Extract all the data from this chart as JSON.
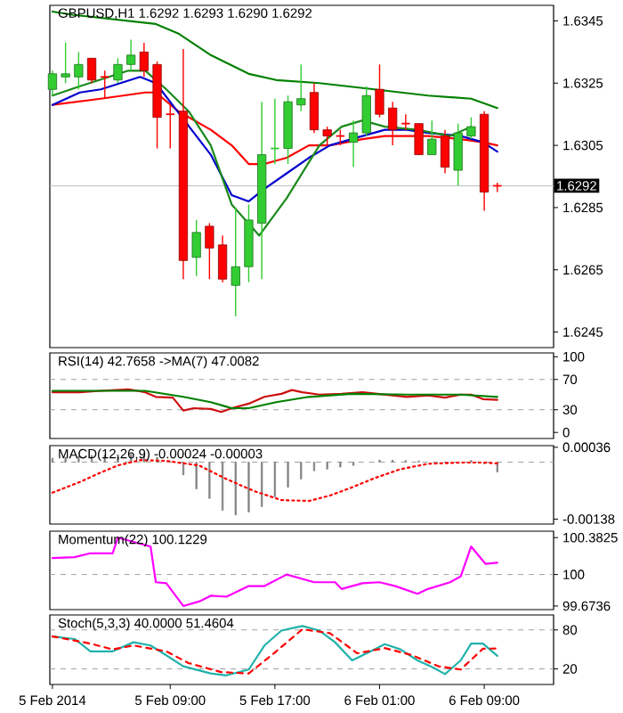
{
  "chart_data": [
    {
      "type": "candlestick",
      "title": "GBPUSD,H1 1.6292 1.6293 1.6290 1.6292",
      "x": [
        "2014-02-05T00:00",
        "2014-02-05T01:00",
        "2014-02-05T02:00",
        "2014-02-05T03:00",
        "2014-02-05T04:00",
        "2014-02-05T05:00",
        "2014-02-05T06:00",
        "2014-02-05T07:00",
        "2014-02-05T08:00",
        "2014-02-05T09:00",
        "2014-02-05T10:00",
        "2014-02-05T11:00",
        "2014-02-05T12:00",
        "2014-02-05T13:00",
        "2014-02-05T14:00",
        "2014-02-05T15:00",
        "2014-02-05T16:00",
        "2014-02-05T17:00",
        "2014-02-05T18:00",
        "2014-02-05T19:00",
        "2014-02-05T20:00",
        "2014-02-05T21:00",
        "2014-02-05T22:00",
        "2014-02-05T23:00",
        "2014-02-06T00:00",
        "2014-02-06T01:00",
        "2014-02-06T02:00",
        "2014-02-06T03:00",
        "2014-02-06T04:00",
        "2014-02-06T05:00",
        "2014-02-06T06:00",
        "2014-02-06T07:00",
        "2014-02-06T08:00",
        "2014-02-06T09:00",
        "2014-02-06T10:00"
      ],
      "ohlc": [
        [
          1.6323,
          1.6329,
          1.6321,
          1.6328
        ],
        [
          1.6327,
          1.6338,
          1.6325,
          1.6328
        ],
        [
          1.6327,
          1.6335,
          1.6323,
          1.6331
        ],
        [
          1.6333,
          1.6333,
          1.6325,
          1.6326
        ],
        [
          1.6327,
          1.6329,
          1.632,
          1.6327
        ],
        [
          1.6326,
          1.6333,
          1.6325,
          1.6331
        ],
        [
          1.6331,
          1.6339,
          1.6329,
          1.6334
        ],
        [
          1.6335,
          1.6338,
          1.6327,
          1.6329
        ],
        [
          1.6331,
          1.6332,
          1.6304,
          1.6314
        ],
        [
          1.6315,
          1.6318,
          1.6304,
          1.6315
        ],
        [
          1.6316,
          1.6336,
          1.6262,
          1.6268
        ],
        [
          1.6269,
          1.6281,
          1.6263,
          1.6277
        ],
        [
          1.6279,
          1.628,
          1.6262,
          1.6272
        ],
        [
          1.6273,
          1.6276,
          1.6261,
          1.6262
        ],
        [
          1.626,
          1.6285,
          1.625,
          1.6266
        ],
        [
          1.6266,
          1.6286,
          1.6261,
          1.6281
        ],
        [
          1.628,
          1.6319,
          1.6262,
          1.6302
        ],
        [
          1.6304,
          1.632,
          1.6299,
          1.6304
        ],
        [
          1.6304,
          1.6321,
          1.6299,
          1.6319
        ],
        [
          1.6318,
          1.6331,
          1.6316,
          1.632
        ],
        [
          1.6322,
          1.6325,
          1.6309,
          1.631
        ],
        [
          1.631,
          1.6311,
          1.6305,
          1.6308
        ],
        [
          1.6308,
          1.631,
          1.6305,
          1.6308
        ],
        [
          1.6306,
          1.6313,
          1.6298,
          1.6309
        ],
        [
          1.6309,
          1.6324,
          1.6308,
          1.6321
        ],
        [
          1.6323,
          1.6331,
          1.6314,
          1.6315
        ],
        [
          1.6317,
          1.6319,
          1.6305,
          1.631
        ],
        [
          1.6312,
          1.6315,
          1.631,
          1.6312
        ],
        [
          1.6312,
          1.6312,
          1.6302,
          1.6302
        ],
        [
          1.6302,
          1.6313,
          1.6302,
          1.6307
        ],
        [
          1.6308,
          1.631,
          1.6296,
          1.6298
        ],
        [
          1.6297,
          1.6312,
          1.6292,
          1.6309
        ],
        [
          1.6308,
          1.6314,
          1.6307,
          1.6311
        ],
        [
          1.6315,
          1.6316,
          1.6284,
          1.629
        ],
        [
          1.6292,
          1.6293,
          1.629,
          1.6292
        ]
      ],
      "colors": [
        "#32cd32",
        "#32cd32",
        "#32cd32",
        "#ff0000",
        "#ff0000",
        "#32cd32",
        "#32cd32",
        "#ff0000",
        "#ff0000",
        "#ff0000",
        "#ff0000",
        "#32cd32",
        "#ff0000",
        "#ff0000",
        "#32cd32",
        "#32cd32",
        "#32cd32",
        "#32cd32",
        "#32cd32",
        "#32cd32",
        "#ff0000",
        "#ff0000",
        "#ff0000",
        "#32cd32",
        "#32cd32",
        "#ff0000",
        "#ff0000",
        "#ff0000",
        "#ff0000",
        "#32cd32",
        "#ff0000",
        "#32cd32",
        "#32cd32",
        "#ff0000",
        "#ff0000"
      ],
      "series": [
        {
          "type": "line",
          "color": "#008000",
          "x": [
            "2014-02-05T00:00",
            "2014-02-05T01:30",
            "2014-02-05T07:54",
            "2014-02-05T09:36",
            "2014-02-05T12:06",
            "2014-02-05T15:00",
            "2014-02-05T17:06",
            "2014-02-05T20:24",
            "2014-02-06T00:36",
            "2014-02-06T04:42",
            "2014-02-06T08:00",
            "2014-02-06T10:00"
          ],
          "values": [
            1.6348,
            1.6347,
            1.6344,
            1.6341,
            1.6334,
            1.6328,
            1.6326,
            1.6325,
            1.6323,
            1.6321,
            1.632,
            1.6317
          ]
        },
        {
          "type": "line",
          "color": "#ff0000",
          "x": [
            "2014-02-05T00:00",
            "2014-02-05T03:42",
            "2014-02-05T07:06",
            "2014-02-05T07:54",
            "2014-02-05T09:36",
            "2014-02-05T12:06",
            "2014-02-05T13:42",
            "2014-02-05T15:00",
            "2014-02-05T16:12",
            "2014-02-05T17:54",
            "2014-02-05T19:36",
            "2014-02-05T21:12",
            "2014-02-05T23:42",
            "2014-02-06T01:24",
            "2014-02-06T03:06",
            "2014-02-06T04:42",
            "2014-02-06T07:12",
            "2014-02-06T08:54",
            "2014-02-06T10:00"
          ],
          "values": [
            1.6318,
            1.632,
            1.6322,
            1.6322,
            1.6316,
            1.631,
            1.6305,
            1.6299,
            1.6299,
            1.6301,
            1.6305,
            1.6305,
            1.6307,
            1.6308,
            1.6308,
            1.6308,
            1.6307,
            1.6306,
            1.6305
          ]
        },
        {
          "type": "line",
          "color": "#0000cd",
          "x": [
            "2014-02-05T00:00",
            "2014-02-05T02:06",
            "2014-02-05T03:42",
            "2014-02-05T06:42",
            "2014-02-05T07:54",
            "2014-02-05T09:54",
            "2014-02-05T12:06",
            "2014-02-05T13:42",
            "2014-02-05T15:00",
            "2014-02-05T16:12",
            "2014-02-05T17:54",
            "2014-02-05T19:36",
            "2014-02-05T21:12",
            "2014-02-05T23:42",
            "2014-02-06T01:24",
            "2014-02-06T03:06",
            "2014-02-06T04:42",
            "2014-02-06T07:12",
            "2014-02-06T08:54",
            "2014-02-06T10:00"
          ],
          "values": [
            1.6318,
            1.6322,
            1.6323,
            1.6327,
            1.6325,
            1.6314,
            1.6302,
            1.6289,
            1.6287,
            1.6291,
            1.6296,
            1.6301,
            1.6305,
            1.6308,
            1.631,
            1.631,
            1.6309,
            1.6308,
            1.6306,
            1.6303
          ]
        },
        {
          "type": "line",
          "color": "#1a8a1a",
          "x": [
            "2014-02-05T00:00",
            "2014-02-05T02:06",
            "2014-02-05T05:48",
            "2014-02-05T07:06",
            "2014-02-05T08:42",
            "2014-02-05T10:24",
            "2014-02-05T12:06",
            "2014-02-05T13:42",
            "2014-02-05T15:48",
            "2014-02-05T17:54",
            "2014-02-05T20:24",
            "2014-02-05T22:06",
            "2014-02-05T23:42",
            "2014-02-06T01:24",
            "2014-02-06T03:54",
            "2014-02-06T06:24",
            "2014-02-06T08:00"
          ],
          "values": [
            1.6321,
            1.6324,
            1.6329,
            1.6329,
            1.6323,
            1.6316,
            1.6305,
            1.6286,
            1.6276,
            1.6288,
            1.6305,
            1.6311,
            1.6313,
            1.6311,
            1.631,
            1.6308,
            1.6311
          ]
        }
      ],
      "ref_lines": [
        {
          "axis": "y",
          "value": 1.6292,
          "label": "1.6292",
          "color": "#c0c0c0"
        }
      ],
      "xlim": [
        "2014-02-04T23:48",
        "2014-02-06T14:18"
      ],
      "ylim": [
        1.624,
        1.635
      ],
      "yticks": [
        1.6245,
        1.6265,
        1.6285,
        1.6305,
        1.6325,
        1.6345
      ],
      "tick_labels": "y"
    },
    {
      "type": "line",
      "title": "RSI(14) 42.7658 ->MA(7) 47.0082",
      "series": [
        {
          "color": "#cc1010",
          "x": [
            "2014-02-05T00:00",
            "2014-02-05T02:06",
            "2014-02-05T03:42",
            "2014-02-05T05:48",
            "2014-02-05T07:06",
            "2014-02-05T07:54",
            "2014-02-05T09:12",
            "2014-02-05T10:00",
            "2014-02-05T10:48",
            "2014-02-05T12:06",
            "2014-02-05T12:54",
            "2014-02-05T13:42",
            "2014-02-05T15:00",
            "2014-02-05T16:12",
            "2014-02-05T17:30",
            "2014-02-05T18:18",
            "2014-02-05T19:06",
            "2014-02-05T20:24",
            "2014-02-05T22:06",
            "2014-02-05T23:42",
            "2014-02-06T01:24",
            "2014-02-06T03:06",
            "2014-02-06T04:42",
            "2014-02-06T06:00",
            "2014-02-06T07:12",
            "2014-02-06T08:00",
            "2014-02-06T08:54",
            "2014-02-06T10:00"
          ],
          "values": [
            53,
            53,
            55,
            57,
            53,
            47,
            46,
            29,
            32,
            31,
            27,
            32,
            38,
            47,
            51,
            56,
            53,
            50,
            51,
            53,
            50,
            47,
            49,
            46,
            50,
            50,
            44,
            43
          ]
        },
        {
          "color": "#008000",
          "x": [
            "2014-02-05T00:00",
            "2014-02-05T07:06",
            "2014-02-05T10:00",
            "2014-02-05T12:06",
            "2014-02-05T13:42",
            "2014-02-05T15:00",
            "2014-02-05T17:06",
            "2014-02-05T19:36",
            "2014-02-05T22:54",
            "2014-02-06T03:06",
            "2014-02-06T07:12",
            "2014-02-06T10:00"
          ],
          "values": [
            55,
            55,
            47,
            40,
            32,
            32,
            40,
            47,
            51,
            50,
            50,
            47
          ]
        }
      ],
      "ref_lines": [
        {
          "axis": "y",
          "value": 70,
          "color": "#a0a0a0",
          "line_style": "dashed"
        },
        {
          "axis": "y",
          "value": 30,
          "color": "#a0a0a0",
          "line_style": "dashed"
        }
      ],
      "xlim": [
        "2014-02-04T23:48",
        "2014-02-06T14:18"
      ],
      "ylim": [
        -8,
        105
      ],
      "yticks": [
        0,
        30,
        70,
        100
      ],
      "tick_labels": "y"
    },
    {
      "type": "bar",
      "title": "MACD(12,26,9) -0.00024 -0.00003",
      "series": [
        {
          "type": "bar",
          "color": "#808080",
          "x": [
            "2014-02-05T00:00",
            "2014-02-05T01:00",
            "2014-02-05T02:00",
            "2014-02-05T03:00",
            "2014-02-05T04:00",
            "2014-02-05T05:00",
            "2014-02-05T06:00",
            "2014-02-05T07:00",
            "2014-02-05T08:00",
            "2014-02-05T09:00",
            "2014-02-05T10:00",
            "2014-02-05T11:00",
            "2014-02-05T12:00",
            "2014-02-05T13:00",
            "2014-02-05T14:00",
            "2014-02-05T15:00",
            "2014-02-05T16:00",
            "2014-02-05T17:00",
            "2014-02-05T18:00",
            "2014-02-05T19:00",
            "2014-02-05T20:00",
            "2014-02-05T21:00",
            "2014-02-05T22:00",
            "2014-02-05T23:00",
            "2014-02-06T00:00",
            "2014-02-06T01:00",
            "2014-02-06T02:00",
            "2014-02-06T03:00",
            "2014-02-06T04:00",
            "2014-02-06T05:00",
            "2014-02-06T06:00",
            "2014-02-06T07:00",
            "2014-02-06T08:00",
            "2014-02-06T09:00",
            "2014-02-06T10:00"
          ],
          "values": [
            0.0001,
            0.00012,
            0.00014,
            0.00016,
            0.00017,
            0.00018,
            0.00019,
            0.00018,
            0.00012,
            null,
            -0.00031,
            -0.00065,
            -0.00088,
            -0.00117,
            -0.00128,
            -0.00121,
            -0.00108,
            -0.00084,
            -0.00061,
            -0.00041,
            -0.00021,
            -0.00017,
            -0.00012,
            -8e-05,
            null,
            5e-05,
            5e-05,
            4e-05,
            3e-05,
            null,
            0,
            null,
            4e-05,
            -4e-05,
            -0.00024
          ]
        },
        {
          "type": "line",
          "color": "#ff0000",
          "line_style": "dotted",
          "x": [
            "2014-02-05T00:00",
            "2014-02-05T02:06",
            "2014-02-05T03:42",
            "2014-02-05T05:00",
            "2014-02-05T06:42",
            "2014-02-05T08:42",
            "2014-02-05T11:12",
            "2014-02-05T13:18",
            "2014-02-05T15:24",
            "2014-02-05T17:30",
            "2014-02-05T19:36",
            "2014-02-05T21:12",
            "2014-02-05T22:54",
            "2014-02-06T00:36",
            "2014-02-06T02:36",
            "2014-02-06T04:42",
            "2014-02-06T07:12",
            "2014-02-06T08:54",
            "2014-02-06T10:00"
          ],
          "values": [
            -0.00074,
            -0.00048,
            -0.00025,
            -8e-05,
            5e-05,
            3e-05,
            -8e-05,
            -0.00041,
            -0.0007,
            -0.00092,
            -0.00094,
            -0.00081,
            -0.00061,
            -0.00039,
            -0.00017,
            -4e-05,
            -1e-05,
            -1e-05,
            -3e-05
          ]
        }
      ],
      "ref_lines": [
        {
          "axis": "y",
          "value": 0,
          "color": "#a0a0a0",
          "line_style": "dashed"
        }
      ],
      "xlim": [
        "2014-02-04T23:48",
        "2014-02-06T14:18"
      ],
      "ylim": [
        -0.0015,
        0.0004
      ],
      "yticks": [
        -0.00138,
        0.00036
      ],
      "tick_labels": "y"
    },
    {
      "type": "line",
      "title": "Momentum(22) 100.1229",
      "series": [
        {
          "color": "#ff00ff",
          "x": [
            "2014-02-05T00:00",
            "2014-02-05T01:42",
            "2014-02-05T02:54",
            "2014-02-05T04:36",
            "2014-02-05T05:00",
            "2014-02-05T06:42",
            "2014-02-05T07:30",
            "2014-02-05T07:54",
            "2014-02-05T08:42",
            "2014-02-05T10:00",
            "2014-02-05T11:12",
            "2014-02-05T12:06",
            "2014-02-05T13:18",
            "2014-02-05T15:00",
            "2014-02-05T16:12",
            "2014-02-05T17:54",
            "2014-02-05T20:00",
            "2014-02-05T21:36",
            "2014-02-05T22:06",
            "2014-02-05T23:42",
            "2014-02-06T01:00",
            "2014-02-06T02:12",
            "2014-02-06T03:54",
            "2014-02-06T04:42",
            "2014-02-06T06:24",
            "2014-02-06T07:12",
            "2014-02-06T08:00",
            "2014-02-06T09:06",
            "2014-02-06T10:00"
          ],
          "values": [
            100.17,
            100.18,
            100.22,
            100.22,
            100.3825,
            100.32,
            100.29,
            99.92,
            99.91,
            99.6736,
            99.72,
            99.78,
            99.77,
            99.88,
            99.88,
            100,
            99.92,
            99.92,
            99.85,
            99.91,
            99.92,
            99.88,
            99.8,
            99.85,
            99.92,
            99.98,
            100.29,
            100.11,
            100.1229
          ]
        }
      ],
      "ref_lines": [
        {
          "axis": "y",
          "value": 100,
          "color": "#a0a0a0",
          "line_style": "dashed"
        }
      ],
      "xlim": [
        "2014-02-04T23:48",
        "2014-02-06T14:18"
      ],
      "ylim": [
        99.636,
        100.449
      ],
      "yticks": [
        99.6736,
        100,
        100.3825
      ],
      "tick_labels": "y"
    },
    {
      "type": "line",
      "title": "Stoch(5,3,3) 40.0000 51.4604",
      "series": [
        {
          "color": "#20b2aa",
          "x": [
            "2014-02-05T00:00",
            "2014-02-05T01:42",
            "2014-02-05T02:54",
            "2014-02-05T04:36",
            "2014-02-05T06:12",
            "2014-02-05T07:30",
            "2014-02-05T08:42",
            "2014-02-05T10:00",
            "2014-02-05T12:06",
            "2014-02-05T13:18",
            "2014-02-05T15:00",
            "2014-02-05T16:12",
            "2014-02-05T17:30",
            "2014-02-05T19:06",
            "2014-02-05T20:24",
            "2014-02-05T21:36",
            "2014-02-05T22:54",
            "2014-02-06T00:36",
            "2014-02-06T01:24",
            "2014-02-06T02:36",
            "2014-02-06T03:54",
            "2014-02-06T05:06",
            "2014-02-06T06:00",
            "2014-02-06T07:12",
            "2014-02-06T08:00",
            "2014-02-06T08:54",
            "2014-02-06T10:00"
          ],
          "values": [
            70,
            66,
            47,
            47,
            61,
            56,
            41,
            24,
            13,
            10,
            19,
            56,
            79,
            86,
            79,
            61,
            33,
            50,
            58,
            50,
            33,
            22,
            12,
            33,
            59,
            59,
            40
          ]
        },
        {
          "color": "#ff0000",
          "line_style": "dashed",
          "x": [
            "2014-02-05T00:00",
            "2014-02-05T02:54",
            "2014-02-05T04:36",
            "2014-02-05T06:12",
            "2014-02-05T08:42",
            "2014-02-05T10:24",
            "2014-02-05T12:54",
            "2014-02-05T15:00",
            "2014-02-05T17:06",
            "2014-02-05T19:06",
            "2014-02-05T21:12",
            "2014-02-05T23:18",
            "2014-02-06T01:24",
            "2014-02-06T03:30",
            "2014-02-06T05:30",
            "2014-02-06T07:12",
            "2014-02-06T08:54",
            "2014-02-06T10:00"
          ],
          "values": [
            70,
            59,
            50,
            56,
            47,
            29,
            15,
            13,
            47,
            81,
            75,
            44,
            52,
            41,
            24,
            19,
            51,
            51.46
          ]
        }
      ],
      "ref_lines": [
        {
          "axis": "y",
          "value": 80,
          "color": "#a0a0a0",
          "line_style": "dashed"
        },
        {
          "axis": "y",
          "value": 20,
          "color": "#a0a0a0",
          "line_style": "dashed"
        }
      ],
      "xlim": [
        "2014-02-04T23:48",
        "2014-02-06T14:18"
      ],
      "ylim": [
        -4,
        103
      ],
      "yticks": [
        20,
        80
      ],
      "xticks": [
        {
          "value": "2014-02-05T00:00",
          "label": "5 Feb 2014"
        },
        {
          "value": "2014-02-05T09:00",
          "label": "5 Feb 09:00"
        },
        {
          "value": "2014-02-05T17:00",
          "label": "5 Feb 17:00"
        },
        {
          "value": "2014-02-06T01:00",
          "label": "6 Feb 01:00"
        },
        {
          "value": "2014-02-06T09:00",
          "label": "6 Feb 09:00"
        }
      ]
    }
  ]
}
